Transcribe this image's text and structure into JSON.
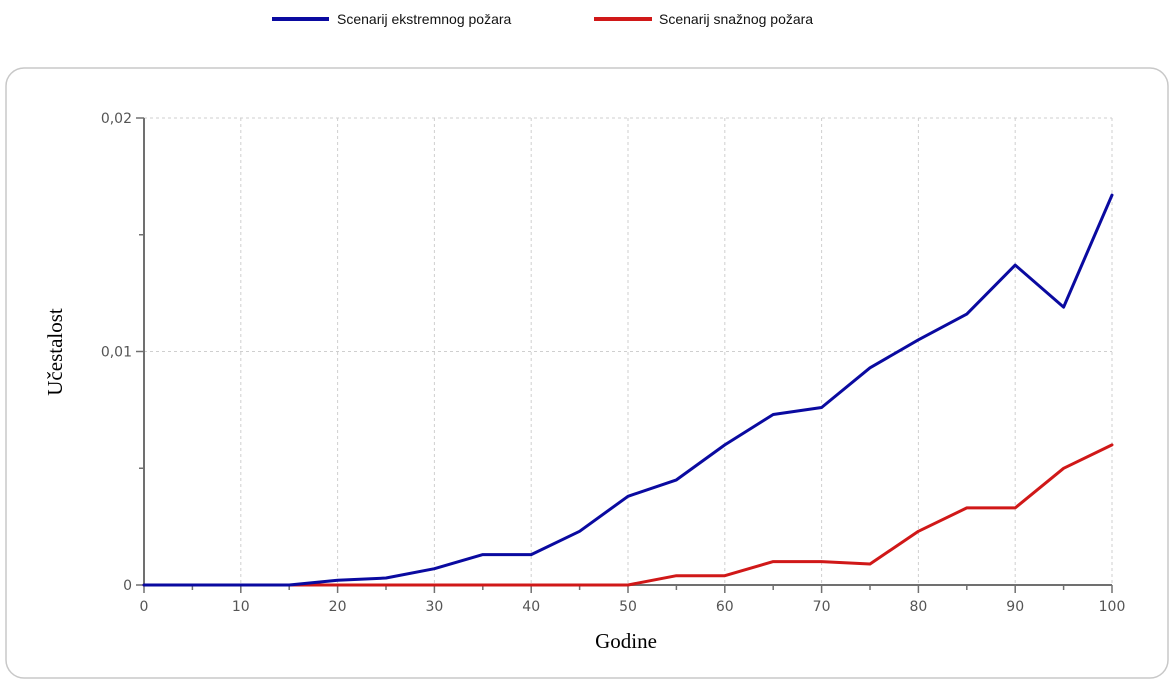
{
  "chart_data": {
    "type": "line",
    "title": "",
    "xlabel": "Godine",
    "ylabel": "Učestalost",
    "xlim": [
      0,
      100
    ],
    "ylim": [
      0,
      0.02
    ],
    "x_ticks": [
      0,
      10,
      20,
      30,
      40,
      50,
      60,
      70,
      80,
      90,
      100
    ],
    "x_tick_labels": [
      "0",
      "10",
      "20",
      "30",
      "40",
      "50",
      "60",
      "70",
      "80",
      "90",
      "100"
    ],
    "y_ticks": [
      0,
      0.01,
      0.02
    ],
    "y_tick_labels": [
      "0",
      "0,01",
      "0,02"
    ],
    "grid": true,
    "legend_position": "top-center",
    "x": [
      0,
      5,
      10,
      15,
      20,
      25,
      30,
      35,
      40,
      45,
      50,
      55,
      60,
      65,
      70,
      75,
      80,
      85,
      90,
      95,
      100
    ],
    "series": [
      {
        "name": "Scenarij ekstremnog požara",
        "color": "#0a0aa0",
        "values": [
          0,
          0,
          0,
          0,
          0.0002,
          0.0003,
          0.0007,
          0.0013,
          0.0013,
          0.0023,
          0.0038,
          0.0045,
          0.006,
          0.0073,
          0.0076,
          0.0093,
          0.0105,
          0.0116,
          0.0137,
          0.0119,
          0.0167
        ]
      },
      {
        "name": "Scenarij snažnog požara",
        "color": "#d01818",
        "values": [
          0,
          0,
          0,
          0,
          0,
          0,
          0,
          0,
          0,
          0,
          0,
          0.0004,
          0.0004,
          0.001,
          0.001,
          0.0009,
          0.0023,
          0.0033,
          0.0033,
          0.005,
          0.006
        ]
      }
    ]
  }
}
